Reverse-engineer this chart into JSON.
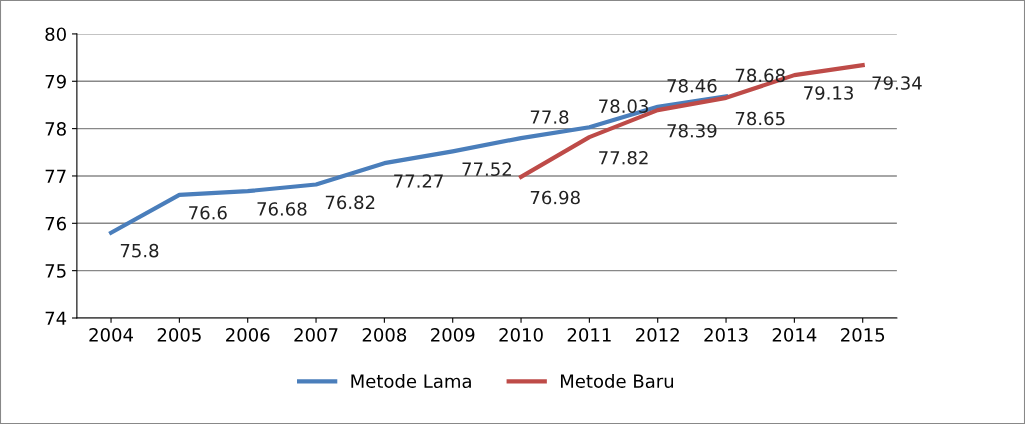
{
  "chart_data": {
    "type": "line",
    "categories": [
      "2004",
      "2005",
      "2006",
      "2007",
      "2008",
      "2009",
      "2010",
      "2011",
      "2012",
      "2013",
      "2014",
      "2015"
    ],
    "series": [
      {
        "name": "Metode Lama",
        "color": "#4a7ebb",
        "values": [
          75.8,
          76.6,
          76.68,
          76.82,
          77.27,
          77.52,
          77.8,
          78.03,
          78.46,
          78.68,
          null,
          null
        ]
      },
      {
        "name": "Metode Baru",
        "color": "#be4b48",
        "values": [
          null,
          null,
          null,
          null,
          null,
          null,
          76.98,
          77.82,
          78.39,
          78.65,
          79.13,
          79.34
        ]
      }
    ],
    "ylim": [
      74,
      80
    ],
    "yticks": [
      74,
      75,
      76,
      77,
      78,
      79,
      80
    ],
    "grid": "y",
    "legend": "bottom",
    "data_labels": true,
    "marker": "none",
    "line_style": "solid"
  }
}
